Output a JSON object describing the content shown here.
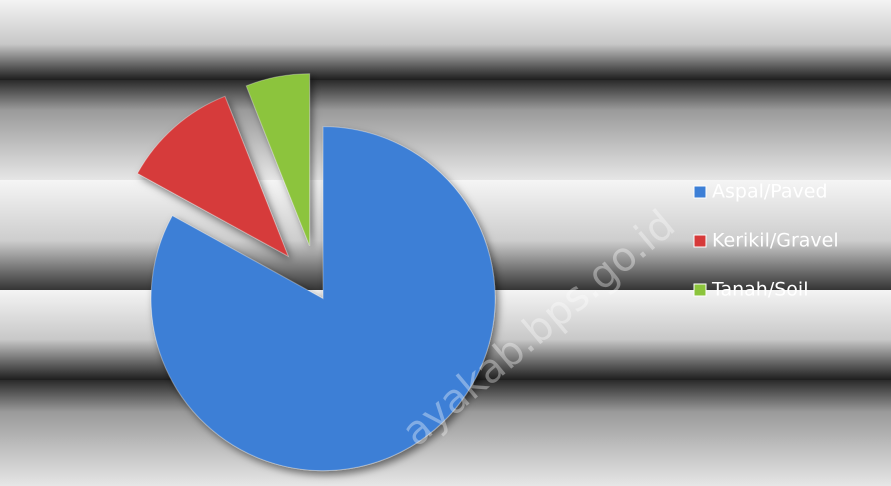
{
  "chart_data": {
    "type": "pie",
    "categories": [
      "Aspal/Paved",
      "Kerikil/Gravel",
      "Tanah/Soil"
    ],
    "values": [
      83,
      11,
      6
    ],
    "colors": [
      "#3d7fd6",
      "#d63a3a",
      "#8cc43c"
    ],
    "legend": "right",
    "watermark": "ayakab.bps.go.id"
  }
}
